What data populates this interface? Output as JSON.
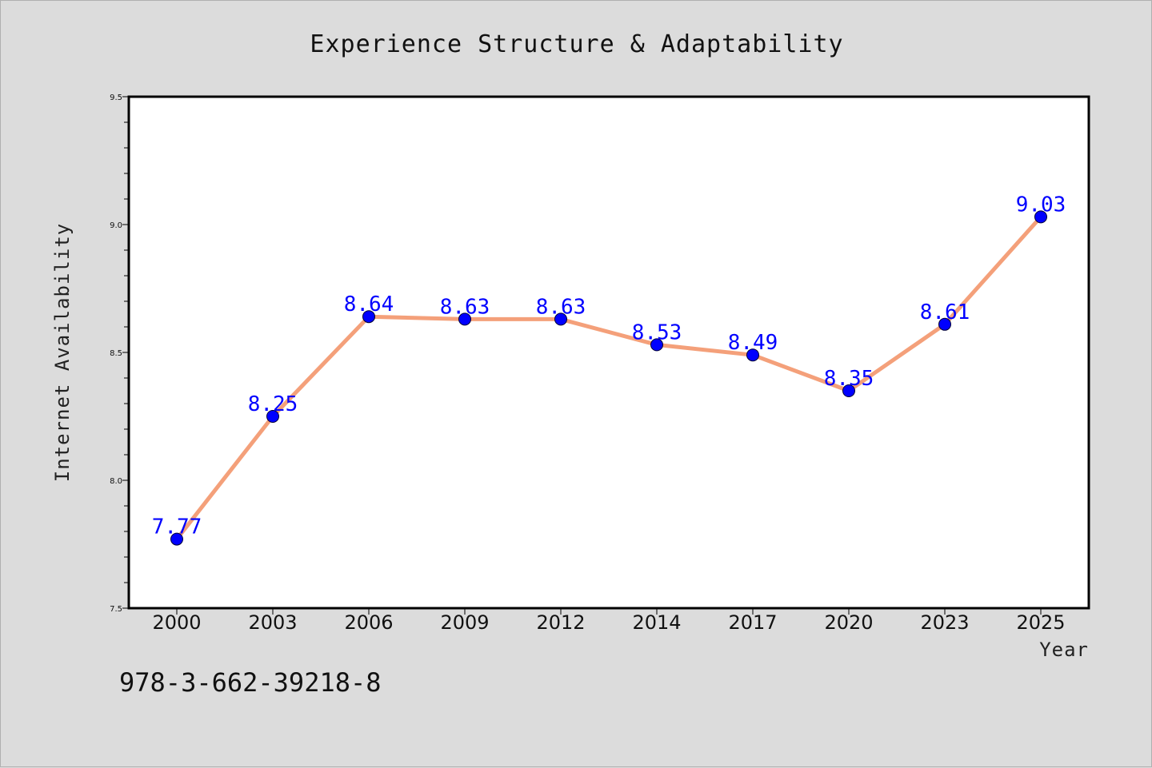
{
  "chart_data": {
    "type": "line",
    "title": "Experience Structure & Adaptability",
    "xlabel": "Year",
    "ylabel": "Internet Availability",
    "categories": [
      "2000",
      "2003",
      "2006",
      "2009",
      "2012",
      "2014",
      "2017",
      "2020",
      "2023",
      "2025"
    ],
    "series": [
      {
        "name": "",
        "values": [
          7.77,
          8.25,
          8.64,
          8.63,
          8.63,
          8.53,
          8.49,
          8.35,
          8.61,
          9.03
        ],
        "line_color": "#f4a07a",
        "marker_color": "#0000ff"
      }
    ],
    "data_labels": [
      "7.77",
      "8.25",
      "8.64",
      "8.63",
      "8.63",
      "8.53",
      "8.49",
      "8.35",
      "8.61",
      "9.03"
    ],
    "ylim": [
      7.5,
      9.5
    ],
    "yticks": [
      7.5,
      8.0,
      8.5,
      9.0,
      9.5
    ],
    "ytick_labels": [
      "7.5",
      "8.0",
      "8.5",
      "9.0",
      "9.5"
    ],
    "grid": false,
    "legend": "none",
    "background_color": "#dcdcdc",
    "plot_background": "#ffffff"
  },
  "footer": {
    "isbn": "978-3-662-39218-8"
  }
}
